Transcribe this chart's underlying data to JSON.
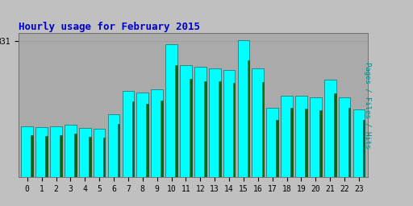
{
  "title": "Hourly usage for February 2015",
  "title_color": "#0000cc",
  "title_fontsize": 9,
  "hours": [
    0,
    1,
    2,
    3,
    4,
    5,
    6,
    7,
    8,
    9,
    10,
    11,
    12,
    13,
    14,
    15,
    16,
    17,
    18,
    19,
    20,
    21,
    22,
    23
  ],
  "hits": [
    310,
    305,
    308,
    320,
    300,
    295,
    385,
    525,
    515,
    535,
    810,
    685,
    675,
    665,
    655,
    835,
    665,
    425,
    495,
    495,
    485,
    595,
    485,
    415
  ],
  "pages": [
    255,
    250,
    258,
    265,
    248,
    243,
    325,
    460,
    450,
    465,
    685,
    600,
    585,
    585,
    575,
    715,
    580,
    350,
    425,
    420,
    410,
    510,
    425,
    350
  ],
  "hits_color": "#00ffff",
  "pages_color": "#006600",
  "bar_edge_color": "#005555",
  "bg_color": "#c0c0c0",
  "plot_bg_color": "#aaaaaa",
  "ytick_label": "831",
  "ytick_value": 831,
  "ylim": [
    0,
    880
  ],
  "xlabel_fontsize": 7,
  "ylabel_fontsize": 7
}
